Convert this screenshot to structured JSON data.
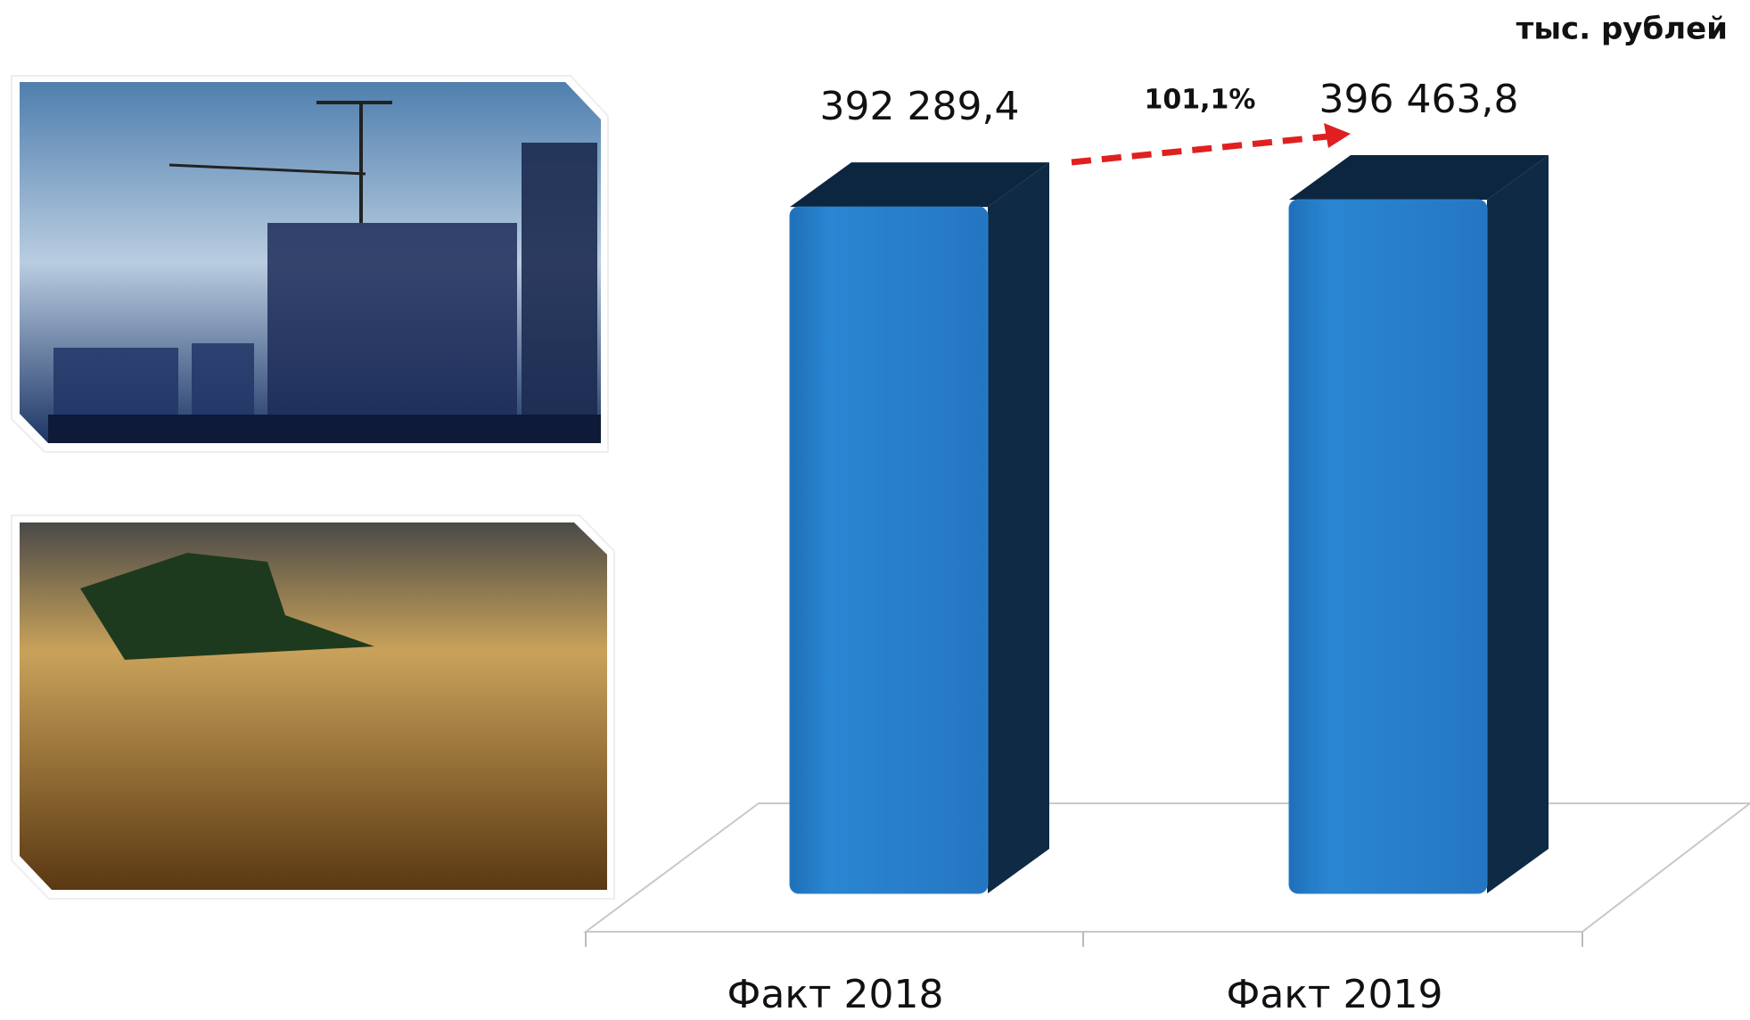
{
  "chart_data": {
    "type": "bar3d",
    "unit": "тыс. рублей",
    "annotation": "101,1%",
    "categories": [
      "Факт 2018",
      "Факт 2019"
    ],
    "values": [
      392289.4,
      396463.8
    ],
    "value_labels": [
      "392 289,4",
      "396 463,8"
    ],
    "color": "#2a80cc",
    "ylim": [
      0,
      400000
    ]
  }
}
